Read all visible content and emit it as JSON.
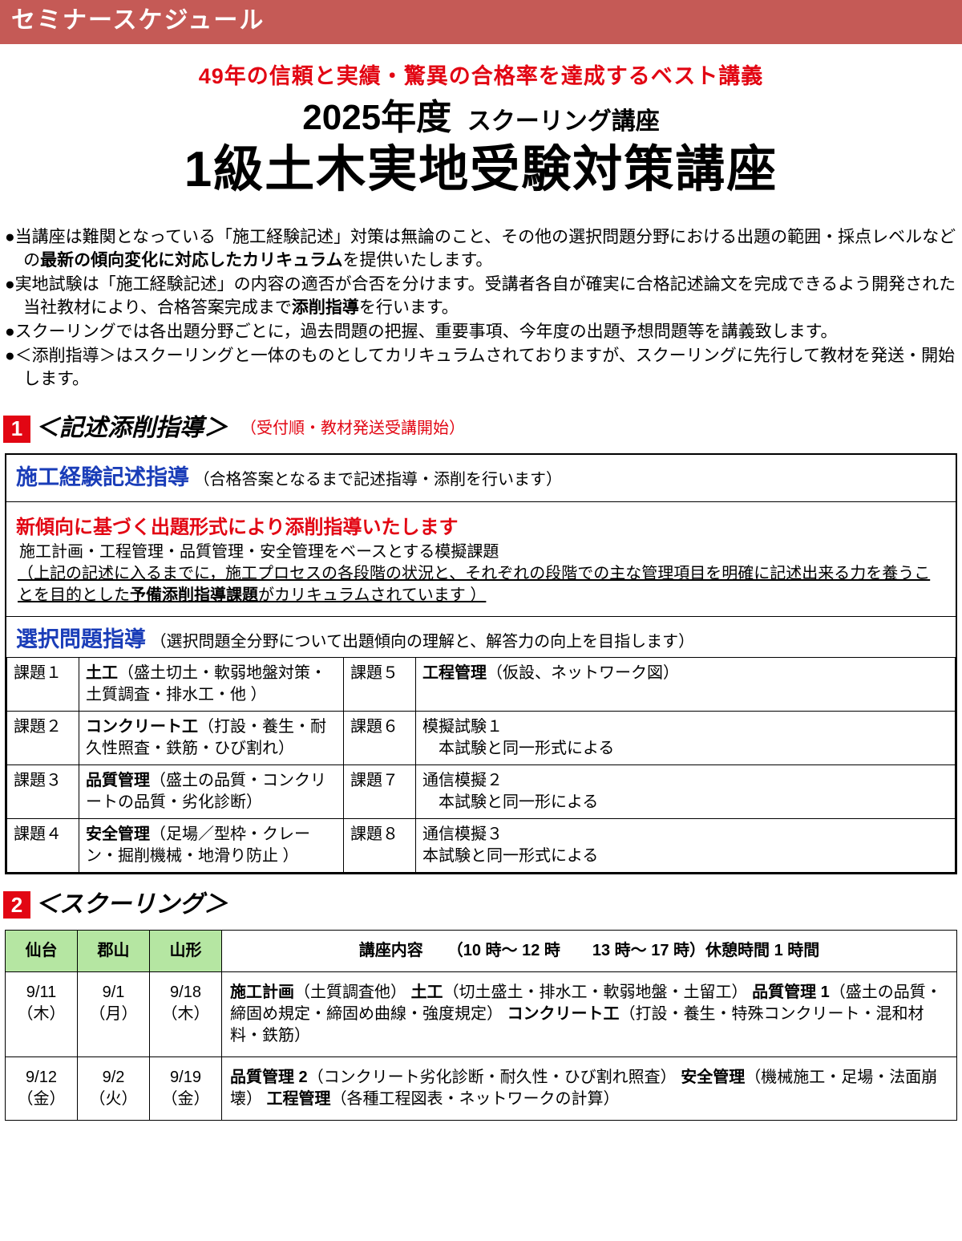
{
  "colors": {
    "brand_red": "#e20613",
    "header_bar": "#c55a56",
    "blue": "#1a3db8",
    "green": "#b5e6a2"
  },
  "header": {
    "bar_title": "セミナースケジュール"
  },
  "hero": {
    "tagline": "49年の信頼と実績・驚異の合格率を達成するベスト講義",
    "year": "2025年度",
    "subline": "スクーリング講座",
    "course_title": "1級土木実地受験対策講座"
  },
  "bullets": [
    {
      "pre": "●当講座は難関となっている「施工経験記述」対策は無論のこと、その他の選択問題分野における出題の範囲・採点レベルなどの",
      "bold": "最新の傾向変化に対応したカリキュラム",
      "post": "を提供いたします。"
    },
    {
      "pre": "●実地試験は「施工経験記述」の内容の適否が合否を分けます。受講者各自が確実に合格記述論文を完成できるよう開発された当社教材により、合格答案完成まで",
      "bold": "添削指導",
      "post": "を行います。"
    },
    {
      "pre": "●スクーリングでは各出題分野ごとに，過去問題の把握、重要事項、今年度の出題予想問題等を講義致します。",
      "bold": "",
      "post": ""
    },
    {
      "pre": "●＜添削指導＞はスクーリングと一体のものとしてカリキュラムされておりますが、スクーリングに先行して教材を発送・開始します。",
      "bold": "",
      "post": ""
    }
  ],
  "section1": {
    "num": "1",
    "title": "＜記述添削指導＞",
    "note": "（受付順・教材発送受講開始）",
    "seg1": {
      "head": "施工経験記述指導",
      "desc": "（合格答案となるまで記述指導・添削を行います）",
      "red": "新傾向に基づく出題形式により添削指導いたします",
      "line2": "施工計画・工程管理・品質管理・安全管理をベースとする模擬課題",
      "u1": "（上記の記述に入るまでに，施工プロセスの各段階の状況と、それぞれの段階での主な管理項目を明確に記述出来る力を養うことを目的とした",
      "u_bold": "予備添削指導課題",
      "u2": "がカリキュラムされています ）"
    },
    "seg2": {
      "head": "選択問題指導",
      "desc": "（選択問題全分野について出題傾向の理解と、解答力の向上を目指します）",
      "tasks": [
        {
          "n": "課題１",
          "a_bold": "土工",
          "a": "（盛土切土・軟弱地盤対策・土質調査・排水工・他 ）",
          "n2": "課題５",
          "b_bold": "工程管理",
          "b": "（仮設、ネットワーク図）"
        },
        {
          "n": "課題２",
          "a_bold": "コンクリート工",
          "a": "（打設・養生・耐久性照査・鉄筋・ひび割れ）",
          "n2": "課題６",
          "b_bold": "",
          "b": "模擬試験１\n　本試験と同一形式による"
        },
        {
          "n": "課題３",
          "a_bold": "品質管理",
          "a": "（盛土の品質・コンクリートの品質・劣化診断）",
          "n2": "課題７",
          "b_bold": "",
          "b": "通信模擬２\n　本試験と同一形による"
        },
        {
          "n": "課題４",
          "a_bold": "安全管理",
          "a": "（足場／型枠・クレーン・掘削機械・地滑り防止 ）",
          "n2": "課題８",
          "b_bold": "",
          "b": "通信模擬３\n本試験と同一形式による"
        }
      ]
    }
  },
  "section2": {
    "num": "2",
    "title": "＜スクーリング＞",
    "headers": {
      "c1": "仙台",
      "c2": "郡山",
      "c3": "山形",
      "content": "講座内容　　（10 時～ 12 時　　13 時～ 17 時）休憩時間 1 時間"
    },
    "rows": [
      {
        "d1": "9/11（木）",
        "d2": "9/1（月）",
        "d3": "9/18（木）",
        "parts": [
          {
            "b": "施工計画",
            "t": "（土質調査他）"
          },
          {
            "b": "土工",
            "t": "（切土盛土・排水工・軟弱地盤・土留工）"
          },
          {
            "b": "品質管理 1",
            "t": "（盛土の品質・締固め規定・締固め曲線・強度規定）"
          },
          {
            "b": "コンクリート工",
            "t": "（打設・養生・特殊コンクリート・混和材料・鉄筋）"
          }
        ]
      },
      {
        "d1": "9/12（金）",
        "d2": "9/2（火）",
        "d3": "9/19（金）",
        "parts": [
          {
            "b": "品質管理 2",
            "t": "（コンクリート劣化診断・耐久性・ひび割れ照査）"
          },
          {
            "b": "安全管理",
            "t": "（機械施工・足場・法面崩壊）"
          },
          {
            "b": "工程管理",
            "t": "（各種工程図表・ネットワークの計算）"
          }
        ]
      }
    ]
  }
}
